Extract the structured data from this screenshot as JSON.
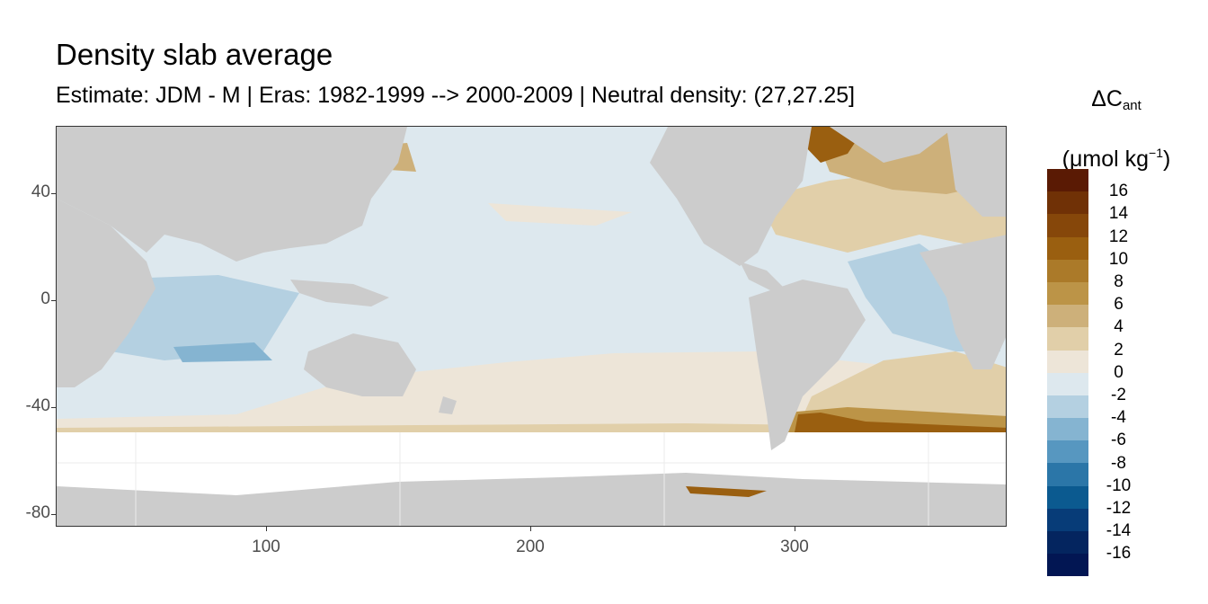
{
  "title": "Density slab average",
  "subtitle": "Estimate: JDM - M | Eras: 1982-1999 --> 2000-2009 | Neutral density: (27,27.25]",
  "map": {
    "x_ticks": [
      "100",
      "200",
      "300"
    ],
    "y_ticks": [
      "40",
      "0",
      "-40",
      "-80"
    ],
    "x_range": [
      20,
      380
    ],
    "y_range": [
      -85,
      65
    ],
    "land_color": "#cccccc",
    "no_data_color": "#ffffff",
    "grid_color": "#ebebeb",
    "field": "ΔC_ant (μmol kg^-1) averaged over neutral density slab (27,27.25]"
  },
  "legend": {
    "title_main": "ΔC",
    "title_sub": "ant",
    "unit_open": "(μmol kg",
    "unit_sup": "−1",
    "unit_close": ")",
    "labels": [
      "16",
      "14",
      "12",
      "10",
      "8",
      "6",
      "4",
      "2",
      "0",
      "-2",
      "-4",
      "-6",
      "-8",
      "-10",
      "-12",
      "-14",
      "-16"
    ],
    "colors": [
      "#5a1a04",
      "#703106",
      "#86470a",
      "#9a5f10",
      "#ab7a29",
      "#bc9447",
      "#cdb07a",
      "#e1cfa9",
      "#ede5d8",
      "#dde8ee",
      "#b4d0e1",
      "#85b4d1",
      "#5797c0",
      "#2b76a8",
      "#0b5a90",
      "#073c78",
      "#04255f",
      "#021653"
    ]
  }
}
